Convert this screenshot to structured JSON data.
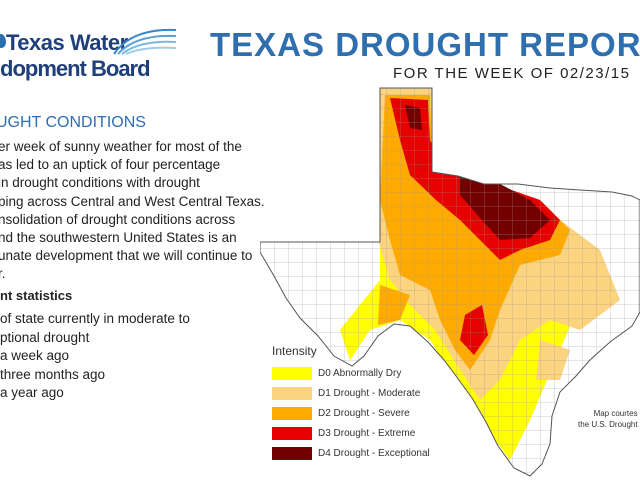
{
  "logo": {
    "line1": "Texas Water",
    "line2": "dopment Board"
  },
  "header": {
    "title": "TEXAS DROUGHT REPORT",
    "subtitle": "FOR THE WEEK OF 02/23/15"
  },
  "section": {
    "heading": "UGHT CONDITIONS",
    "paragraph_lines": [
      "er week of sunny weather for most of the",
      "as led to an uptick of four percentage",
      "in drought conditions with drought",
      "ping across Central and West Central Texas.",
      "nsolidation of drought conditions across",
      "nd the southwestern United States is an",
      "unate development that we will continue to",
      "r."
    ]
  },
  "stats": {
    "heading": "nt statistics",
    "lines": [
      "of state currently in moderate to",
      "ptional drought",
      "a week ago",
      "three months ago",
      "a year ago"
    ]
  },
  "legend": {
    "title": "Intensity",
    "items": [
      {
        "label": "D0 Abnormally Dry",
        "color": "#ffff00"
      },
      {
        "label": "D1 Drought - Moderate",
        "color": "#fcd37f"
      },
      {
        "label": "D2 Drought - Severe",
        "color": "#ffaa00"
      },
      {
        "label": "D3 Drought - Extreme",
        "color": "#e60000"
      },
      {
        "label": "D4 Drought - Exceptional",
        "color": "#730000"
      }
    ]
  },
  "credit": {
    "line1": "Map courtes",
    "line2": "the U.S. Drought"
  },
  "colors": {
    "title": "#2f6fae",
    "logo": "#1f3f7a",
    "county_lines": "#999999"
  }
}
